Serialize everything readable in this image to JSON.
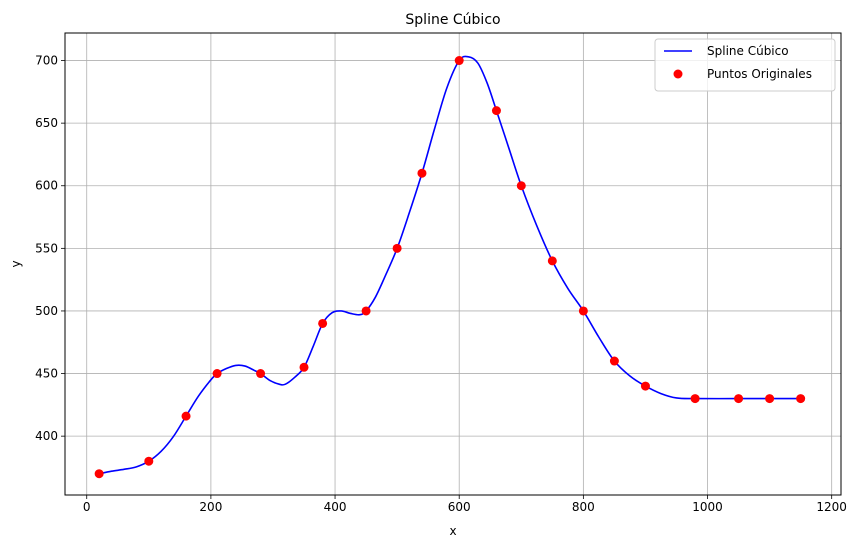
{
  "chart_data": {
    "type": "line",
    "title": "Spline Cúbico",
    "xlabel": "x",
    "ylabel": "y",
    "xlim": [
      -35,
      1215
    ],
    "ylim": [
      353,
      722
    ],
    "xticks": [
      0,
      200,
      400,
      600,
      800,
      1000,
      1200
    ],
    "yticks": [
      400,
      450,
      500,
      550,
      600,
      650,
      700
    ],
    "grid": true,
    "legend_position": "top-right",
    "series": [
      {
        "name": "Spline Cúbico",
        "kind": "line",
        "color": "#0000ff",
        "points": [
          [
            20,
            370
          ],
          [
            40,
            372
          ],
          [
            60,
            373.5
          ],
          [
            80,
            375.5
          ],
          [
            100,
            380
          ],
          [
            120,
            388
          ],
          [
            140,
            400
          ],
          [
            160,
            416
          ],
          [
            180,
            432
          ],
          [
            200,
            445
          ],
          [
            210,
            450
          ],
          [
            225,
            454
          ],
          [
            240,
            456.5
          ],
          [
            255,
            456
          ],
          [
            270,
            452.5
          ],
          [
            280,
            450
          ],
          [
            295,
            444.5
          ],
          [
            310,
            441.5
          ],
          [
            320,
            441.5
          ],
          [
            335,
            447
          ],
          [
            350,
            455
          ],
          [
            365,
            472
          ],
          [
            380,
            490
          ],
          [
            395,
            498.5
          ],
          [
            410,
            500
          ],
          [
            425,
            498
          ],
          [
            440,
            497
          ],
          [
            450,
            500
          ],
          [
            465,
            511
          ],
          [
            480,
            527
          ],
          [
            500,
            550
          ],
          [
            520,
            579
          ],
          [
            540,
            610
          ],
          [
            560,
            645
          ],
          [
            580,
            678
          ],
          [
            600,
            700
          ],
          [
            615,
            703
          ],
          [
            630,
            698
          ],
          [
            645,
            682
          ],
          [
            660,
            660
          ],
          [
            680,
            630
          ],
          [
            700,
            600
          ],
          [
            725,
            568
          ],
          [
            750,
            540
          ],
          [
            775,
            518
          ],
          [
            800,
            500
          ],
          [
            825,
            479
          ],
          [
            850,
            460
          ],
          [
            875,
            448
          ],
          [
            900,
            440
          ],
          [
            925,
            434
          ],
          [
            950,
            430.5
          ],
          [
            980,
            430
          ],
          [
            1050,
            430
          ],
          [
            1100,
            430
          ],
          [
            1150,
            430
          ]
        ]
      },
      {
        "name": "Puntos Originales",
        "kind": "scatter",
        "color": "#ff0000",
        "points": [
          [
            20,
            370
          ],
          [
            100,
            380
          ],
          [
            160,
            416
          ],
          [
            210,
            450
          ],
          [
            280,
            450
          ],
          [
            350,
            455
          ],
          [
            380,
            490
          ],
          [
            450,
            500
          ],
          [
            500,
            550
          ],
          [
            540,
            610
          ],
          [
            600,
            700
          ],
          [
            660,
            660
          ],
          [
            700,
            600
          ],
          [
            750,
            540
          ],
          [
            800,
            500
          ],
          [
            850,
            460
          ],
          [
            900,
            440
          ],
          [
            980,
            430
          ],
          [
            1050,
            430
          ],
          [
            1100,
            430
          ],
          [
            1150,
            430
          ]
        ]
      }
    ]
  }
}
